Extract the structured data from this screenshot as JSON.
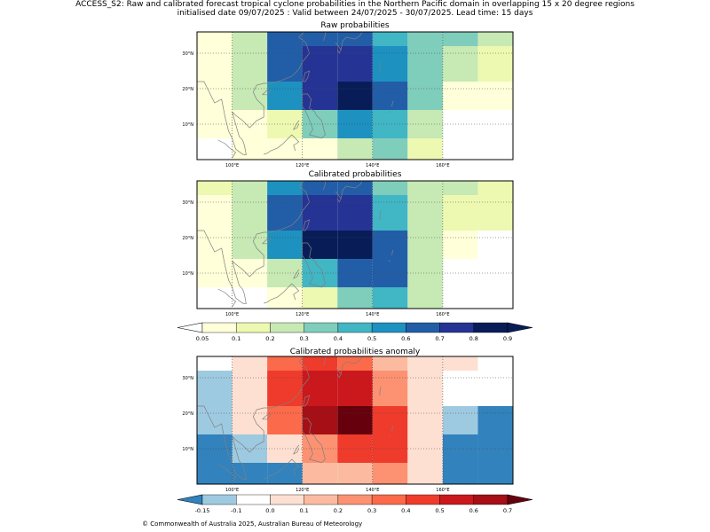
{
  "figure": {
    "title_line1": "ACCESS_S2: Raw and calibrated forecast tropical cyclone probabilities in the Northern Pacific domain in overlapping 15 x 20 degree regions",
    "title_line2": "initialised date 09/07/2025 :  Valid between 24/07/2025 - 30/07/2025. Lead time: 15 days",
    "footer": "© Commonwealth of Australia 2025, Australian Bureau of Meteorology"
  },
  "axes": {
    "x_ticks": [
      "100°E",
      "120°E",
      "140°E",
      "160°E"
    ],
    "y_ticks": [
      "30°N",
      "20°N",
      "10°N"
    ]
  },
  "colors": {
    "coast": "#808080",
    "grid": "#444444"
  },
  "colorbars": {
    "probability": {
      "ticks": [
        "0.05",
        "0.1",
        "0.2",
        "0.3",
        "0.4",
        "0.5",
        "0.6",
        "0.7",
        "0.8",
        "0.9"
      ],
      "colors": [
        "#ffffd9",
        "#edf8b1",
        "#c7e9b4",
        "#7fcdbb",
        "#41b6c4",
        "#1d91c0",
        "#225ea8",
        "#253494",
        "#081d58"
      ],
      "under": "#ffffff",
      "over": "#081d58"
    },
    "anomaly": {
      "ticks": [
        "-0.15",
        "-0.1",
        "0.0",
        "0.1",
        "0.2",
        "0.3",
        "0.4",
        "0.5",
        "0.6",
        "0.7"
      ],
      "colors": [
        "#9ecae1",
        "#ffffff",
        "#fee0d2",
        "#fcbba1",
        "#fc9272",
        "#fb6a4a",
        "#ef3b2c",
        "#cb181d",
        "#a50f15"
      ],
      "under": "#3182bd",
      "over": "#67000d"
    }
  },
  "chart_data": [
    {
      "type": "heatmap",
      "title": "Raw probabilities",
      "palette": "probability",
      "x_cols_deg_east": [
        92.5,
        102.5,
        112.5,
        122.5,
        132.5,
        142.5,
        152.5,
        162.5,
        172.5
      ],
      "y_rows_deg_north": [
        35,
        30,
        25,
        20,
        15,
        10,
        5
      ],
      "values": [
        [
          0.07,
          0.25,
          0.65,
          0.68,
          0.68,
          0.48,
          0.35,
          0.35,
          0.25
        ],
        [
          0.07,
          0.25,
          0.65,
          0.75,
          0.75,
          0.55,
          0.35,
          0.25,
          0.15
        ],
        [
          0.07,
          0.25,
          0.65,
          0.75,
          0.75,
          0.55,
          0.35,
          0.25,
          0.15
        ],
        [
          0.07,
          0.25,
          0.55,
          0.75,
          0.85,
          0.65,
          0.35,
          0.07,
          0.07
        ],
        [
          0.07,
          0.07,
          0.15,
          0.35,
          0.55,
          0.45,
          0.25,
          0.03,
          0.03
        ],
        [
          0.07,
          0.07,
          0.15,
          0.35,
          0.55,
          0.45,
          0.25,
          0.03,
          0.03
        ],
        [
          0.03,
          0.07,
          0.07,
          0.07,
          0.25,
          0.35,
          0.15,
          0.03,
          0.03
        ]
      ]
    },
    {
      "type": "heatmap",
      "title": "Calibrated probabilities",
      "palette": "probability",
      "x_cols_deg_east": [
        92.5,
        102.5,
        112.5,
        122.5,
        132.5,
        142.5,
        152.5,
        162.5,
        172.5
      ],
      "y_rows_deg_north": [
        35,
        30,
        25,
        20,
        15,
        10,
        5
      ],
      "values": [
        [
          0.15,
          0.25,
          0.55,
          0.68,
          0.68,
          0.35,
          0.25,
          0.25,
          0.15
        ],
        [
          0.07,
          0.25,
          0.65,
          0.75,
          0.75,
          0.45,
          0.25,
          0.15,
          0.15
        ],
        [
          0.07,
          0.25,
          0.65,
          0.75,
          0.75,
          0.45,
          0.25,
          0.15,
          0.15
        ],
        [
          0.07,
          0.25,
          0.55,
          0.85,
          0.95,
          0.65,
          0.25,
          0.07,
          0.03
        ],
        [
          0.07,
          0.07,
          0.25,
          0.45,
          0.65,
          0.65,
          0.25,
          0.03,
          0.03
        ],
        [
          0.07,
          0.07,
          0.25,
          0.45,
          0.65,
          0.65,
          0.25,
          0.03,
          0.03
        ],
        [
          0.03,
          0.03,
          0.07,
          0.15,
          0.35,
          0.45,
          0.25,
          0.03,
          0.03
        ]
      ]
    },
    {
      "type": "heatmap",
      "title": "Calibrated probabilities anomaly",
      "palette": "anomaly",
      "x_cols_deg_east": [
        92.5,
        102.5,
        112.5,
        122.5,
        132.5,
        142.5,
        152.5,
        162.5,
        172.5
      ],
      "y_rows_deg_north": [
        35,
        30,
        25,
        20,
        15,
        10,
        5
      ],
      "values": [
        [
          -0.05,
          0.05,
          0.35,
          0.45,
          0.35,
          0.15,
          0.05,
          0.05,
          -0.05
        ],
        [
          -0.12,
          0.05,
          0.45,
          0.55,
          0.55,
          0.25,
          0.05,
          -0.05,
          -0.05
        ],
        [
          -0.12,
          0.05,
          0.45,
          0.55,
          0.55,
          0.25,
          0.05,
          -0.05,
          -0.05
        ],
        [
          -0.12,
          0.05,
          0.35,
          0.65,
          0.75,
          0.45,
          0.05,
          -0.12,
          -0.2
        ],
        [
          -0.2,
          -0.12,
          0.05,
          0.25,
          0.45,
          0.45,
          0.05,
          -0.2,
          -0.2
        ],
        [
          -0.2,
          -0.12,
          0.05,
          0.25,
          0.45,
          0.45,
          0.05,
          -0.2,
          -0.2
        ],
        [
          -0.2,
          -0.2,
          -0.2,
          0.15,
          0.15,
          0.25,
          0.05,
          -0.2,
          -0.2
        ]
      ]
    }
  ]
}
